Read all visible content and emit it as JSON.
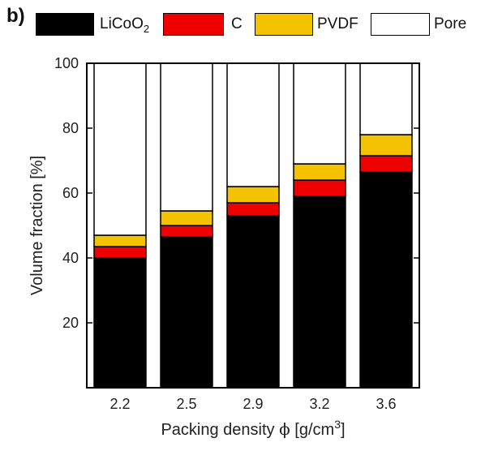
{
  "panel_label": "b)",
  "colors": {
    "LiCoO2": "#000000",
    "C": "#ee0000",
    "PVDF": "#f5c200",
    "Pore": "#ffffff"
  },
  "legend": {
    "licoo2_base": "LiCoO",
    "licoo2_sub": "2",
    "c": "C",
    "pvdf": "PVDF",
    "pore": "Pore"
  },
  "chart_data": {
    "type": "bar",
    "stacked": true,
    "categories": [
      "2.2",
      "2.5",
      "2.9",
      "3.2",
      "3.6"
    ],
    "series": [
      {
        "name": "LiCoO2",
        "values": [
          40,
          46.5,
          53,
          59,
          66.5
        ]
      },
      {
        "name": "C",
        "values": [
          3.5,
          3.5,
          4,
          5,
          5
        ]
      },
      {
        "name": "PVDF",
        "values": [
          3.5,
          4.5,
          5,
          5,
          6.5
        ]
      },
      {
        "name": "Pore",
        "values": [
          53,
          45.5,
          38,
          31,
          22
        ]
      }
    ],
    "xlabel_prefix": "Packing density ",
    "xlabel_symbol": "ϕ",
    "xlabel_unit_base": " [g/cm",
    "xlabel_unit_sup": "3",
    "xlabel_unit_close": "]",
    "ylabel": "Volume fraction [%]",
    "ylim": [
      0,
      100
    ],
    "yticks": [
      "20",
      "40",
      "60",
      "80",
      "100"
    ],
    "grid": false,
    "legend_position": "top"
  }
}
